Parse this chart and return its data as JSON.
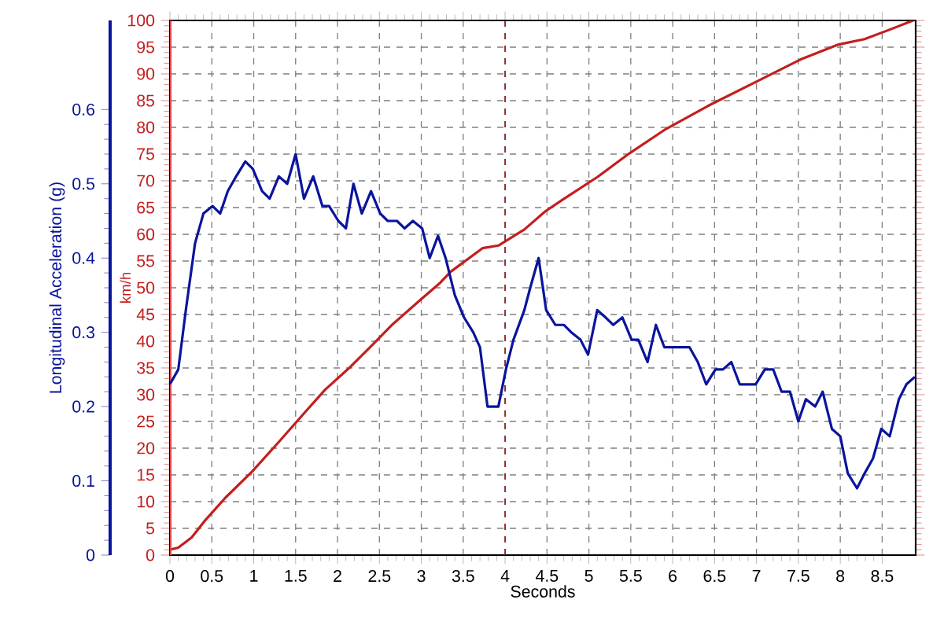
{
  "chart_data": {
    "type": "line",
    "xlabel": "Seconds",
    "ylabel": "km/h",
    "y2label": "Longitudinal Acceleration (g)",
    "xlim": [
      0,
      8.9
    ],
    "xticks": [
      0,
      0.5,
      1,
      1.5,
      2,
      2.5,
      3,
      3.5,
      4,
      4.5,
      5,
      5.5,
      6,
      6.5,
      7,
      7.5,
      8,
      8.5
    ],
    "ylim": [
      0,
      100
    ],
    "yticks": [
      0,
      5,
      10,
      15,
      20,
      25,
      30,
      35,
      40,
      45,
      50,
      55,
      60,
      65,
      70,
      75,
      80,
      85,
      90,
      95,
      100
    ],
    "y2lim": [
      0,
      0.72
    ],
    "y2ticks": [
      0,
      0.1,
      0.2,
      0.3,
      0.4,
      0.5,
      0.6
    ],
    "grid": true,
    "marker": "none",
    "line_style": "solid",
    "ref_lines": [
      {
        "axis": "x",
        "value": 4,
        "color": "#8b1a1a",
        "line_style": "dashed"
      }
    ],
    "series": [
      {
        "color": "#c41e1e",
        "x": [
          0,
          0.1,
          0.26,
          0.41,
          0.66,
          0.98,
          1.29,
          1.6,
          1.85,
          2.16,
          2.41,
          2.66,
          2.98,
          3.23,
          3.35,
          3.73,
          3.92,
          4.23,
          4.48,
          4.67,
          5.1,
          5.48,
          5.92,
          6.42,
          6.98,
          7.54,
          7.98,
          8.29,
          8.61,
          8.87
        ],
        "values": [
          1,
          1.4,
          3.3,
          6.3,
          10.7,
          15.6,
          21,
          26.5,
          30.9,
          35.3,
          39.2,
          43.2,
          47.6,
          51,
          53,
          57.4,
          57.9,
          60.9,
          64.3,
          66.3,
          70.7,
          75.1,
          79.7,
          84,
          88.4,
          92.8,
          95.5,
          96.5,
          98.4,
          100
        ]
      },
      {
        "color": "#0a149c",
        "axis": "y2",
        "x": [
          0,
          0.1,
          0.19,
          0.3,
          0.4,
          0.51,
          0.6,
          0.69,
          0.79,
          0.9,
          0.99,
          1.1,
          1.19,
          1.3,
          1.4,
          1.5,
          1.6,
          1.71,
          1.82,
          1.9,
          2.01,
          2.1,
          2.19,
          2.29,
          2.4,
          2.51,
          2.6,
          2.71,
          2.8,
          2.9,
          3.01,
          3.1,
          3.2,
          3.29,
          3.4,
          3.51,
          3.62,
          3.7,
          3.79,
          3.92,
          4.01,
          4.1,
          4.23,
          4.3,
          4.4,
          4.49,
          4.6,
          4.7,
          4.79,
          4.9,
          4.99,
          5.1,
          5.2,
          5.29,
          5.4,
          5.51,
          5.59,
          5.7,
          5.8,
          5.9,
          6.01,
          6.1,
          6.2,
          6.3,
          6.4,
          6.51,
          6.6,
          6.7,
          6.8,
          6.9,
          6.99,
          7.1,
          7.2,
          7.3,
          7.4,
          7.5,
          7.59,
          7.7,
          7.79,
          7.9,
          8,
          8.09,
          8.2,
          8.29,
          8.39,
          8.49,
          8.59,
          8.7,
          8.79,
          8.89
        ],
        "values": [
          0.23,
          0.25,
          0.33,
          0.42,
          0.46,
          0.47,
          0.46,
          0.49,
          0.51,
          0.53,
          0.52,
          0.49,
          0.48,
          0.51,
          0.5,
          0.54,
          0.48,
          0.51,
          0.47,
          0.47,
          0.45,
          0.44,
          0.5,
          0.46,
          0.49,
          0.46,
          0.45,
          0.45,
          0.44,
          0.45,
          0.44,
          0.4,
          0.43,
          0.4,
          0.35,
          0.32,
          0.3,
          0.28,
          0.2,
          0.2,
          0.25,
          0.29,
          0.33,
          0.36,
          0.4,
          0.33,
          0.31,
          0.31,
          0.3,
          0.29,
          0.27,
          0.33,
          0.32,
          0.31,
          0.32,
          0.29,
          0.29,
          0.26,
          0.31,
          0.28,
          0.28,
          0.28,
          0.28,
          0.26,
          0.23,
          0.25,
          0.25,
          0.26,
          0.23,
          0.23,
          0.23,
          0.25,
          0.25,
          0.22,
          0.22,
          0.18,
          0.21,
          0.2,
          0.22,
          0.17,
          0.16,
          0.11,
          0.09,
          0.11,
          0.13,
          0.17,
          0.16,
          0.21,
          0.23,
          0.24
        ]
      }
    ]
  }
}
